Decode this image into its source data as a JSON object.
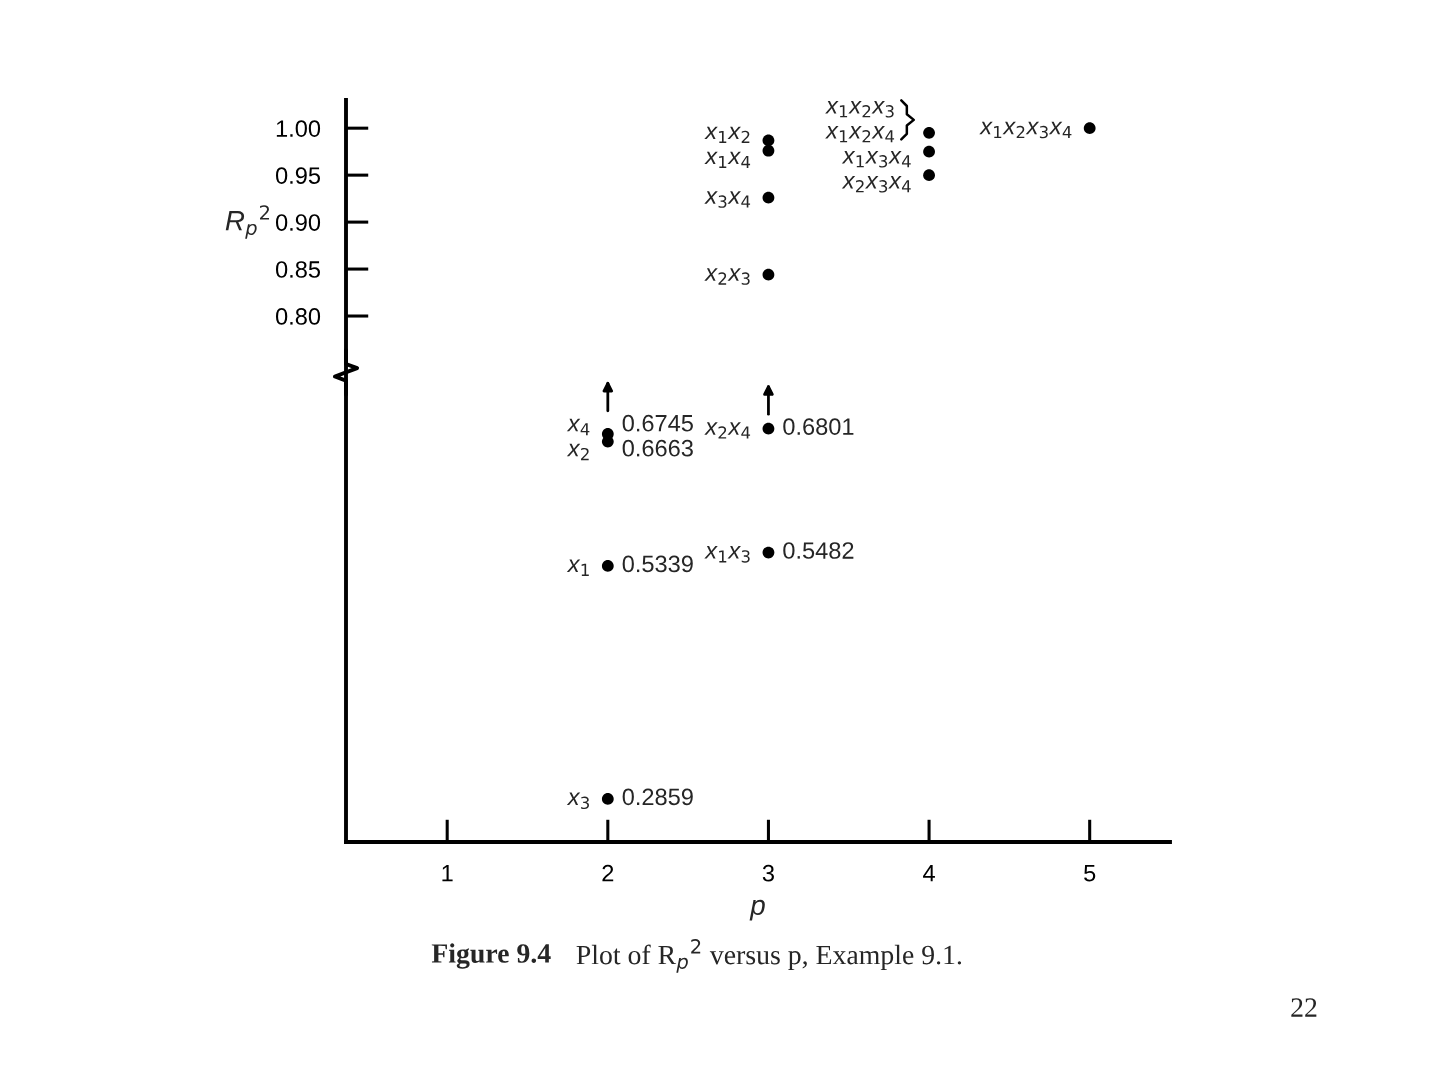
{
  "chart_data": {
    "type": "scatter",
    "xlabel": "p",
    "ylabel": "R$_{p}$$^{2}$",
    "x": [
      3,
      3,
      3,
      3,
      4,
      4,
      4,
      5,
      2,
      2,
      2,
      2,
      3,
      3
    ],
    "values": [
      0.987,
      0.976,
      0.926,
      0.844,
      0.995,
      0.975,
      0.95,
      1.0,
      0.6745,
      0.6663,
      0.5339,
      0.2859,
      0.6801,
      0.5482
    ],
    "value_labels": [
      null,
      null,
      null,
      null,
      null,
      null,
      null,
      null,
      "0.6745",
      "0.6663",
      "0.5339",
      "0.2859",
      "0.6801",
      "0.5482"
    ],
    "color": "#000000",
    "marker": "circle",
    "xlim": [
      0.37,
      5.5
    ],
    "ylim": [
      0.24,
      1.03
    ],
    "xticks": [
      1,
      2,
      3,
      4,
      5
    ],
    "yticks": [
      {
        "value": 0.8,
        "label": "0.80"
      },
      {
        "value": 0.85,
        "label": "0.85"
      },
      {
        "value": 0.9,
        "label": "0.90"
      },
      {
        "value": 0.95,
        "label": "0.95"
      },
      {
        "value": 1.0,
        "label": "1.00"
      }
    ],
    "annotations": [
      {
        "text": "x$_{1}$x$_{2}$",
        "x": 3,
        "y": 0.987
      },
      {
        "text": "x$_{1}$x$_{4}$",
        "x": 3,
        "y": 0.976
      },
      {
        "text": "x$_{3}$x$_{4}$",
        "x": 3,
        "y": 0.926
      },
      {
        "text": "x$_{2}$x$_{3}$",
        "x": 3,
        "y": 0.844
      },
      {
        "text": "x$_{1}$x$_{2}$x$_{3}$",
        "x": 4,
        "y": 0.995
      },
      {
        "text": "x$_{1}$x$_{2}$x$_{4}$",
        "x": 4,
        "y": 0.995
      },
      {
        "text": "x$_{1}$x$_{3}$x$_{4}$",
        "x": 4,
        "y": 0.975
      },
      {
        "text": "x$_{2}$x$_{3}$x$_{4}$",
        "x": 4,
        "y": 0.95
      },
      {
        "text": "x$_{1}$x$_{2}$x$_{3}$x$_{4}$",
        "x": 5,
        "y": 1.0
      },
      {
        "text": "x$_{4}$",
        "x": 2,
        "y": 0.6745
      },
      {
        "text": "x$_{2}$",
        "x": 2,
        "y": 0.6663
      },
      {
        "text": "x$_{1}$",
        "x": 2,
        "y": 0.5339
      },
      {
        "text": "x$_{3}$",
        "x": 2,
        "y": 0.2859
      },
      {
        "text": "x$_{2}$x$_{4}$",
        "x": 3,
        "y": 0.6801
      },
      {
        "text": "x$_{1}$x$_{3}$",
        "x": 3,
        "y": 0.5482
      },
      "Figure 9.4",
      "Plot of R$_{p}$$^{2}$ versus p, Example 9.1.",
      "22"
    ]
  }
}
